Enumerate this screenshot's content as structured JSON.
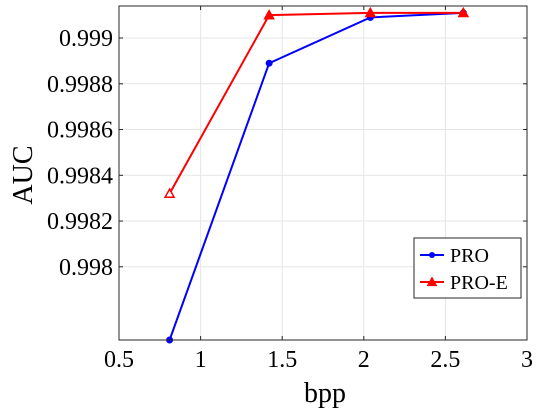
{
  "chart_data": {
    "type": "line",
    "title": "",
    "xlabel": "bpp",
    "ylabel": "AUC",
    "xlim": [
      0.5,
      3
    ],
    "ylim": [
      0.99768,
      0.99914
    ],
    "xticks": [
      0.5,
      1,
      1.5,
      2,
      2.5,
      3
    ],
    "xtick_labels": [
      "0.5",
      "1",
      "1.5",
      "2",
      "2.5",
      "3"
    ],
    "yticks": [
      0.998,
      0.9982,
      0.9984,
      0.9986,
      0.9988,
      0.999
    ],
    "ytick_labels": [
      "0.998",
      "0.9982",
      "0.9984",
      "0.9986",
      "0.9988",
      "0.999"
    ],
    "grid": true,
    "legend_position": "bottom-right",
    "series": [
      {
        "name": "PRO",
        "color": "#0000ff",
        "marker": "circle",
        "x": [
          0.81,
          1.42,
          2.04,
          2.61
        ],
        "y": [
          0.99768,
          0.99889,
          0.99909,
          0.99911
        ]
      },
      {
        "name": "PRO-E",
        "color": "#ff0000",
        "marker": "triangle",
        "x": [
          0.81,
          1.42,
          2.04,
          2.61
        ],
        "y": [
          0.99832,
          0.9991,
          0.99911,
          0.99911
        ]
      }
    ]
  }
}
